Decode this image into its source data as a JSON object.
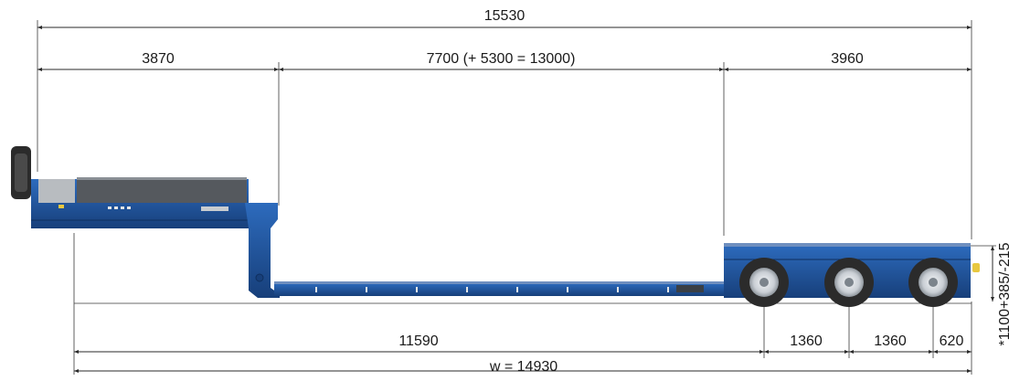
{
  "dimensions": {
    "overall_length": "15530",
    "gooseneck_length": "3870",
    "deck_length": "7700 (+ 5300 = 13000)",
    "rear_section_length": "3960",
    "front_to_first_axle": "11590",
    "axle_spacing_1": "1360",
    "axle_spacing_2": "1360",
    "rear_overhang": "620",
    "wheelbase": "w = 14930",
    "loading_height": "*1100+385/-215"
  },
  "colors": {
    "trailer_blue": "#1f5aa6",
    "trailer_dark_blue": "#173f7a",
    "deck_gray": "#55595e",
    "tire": "#2b2b2b",
    "rim": "#d9dde2"
  }
}
